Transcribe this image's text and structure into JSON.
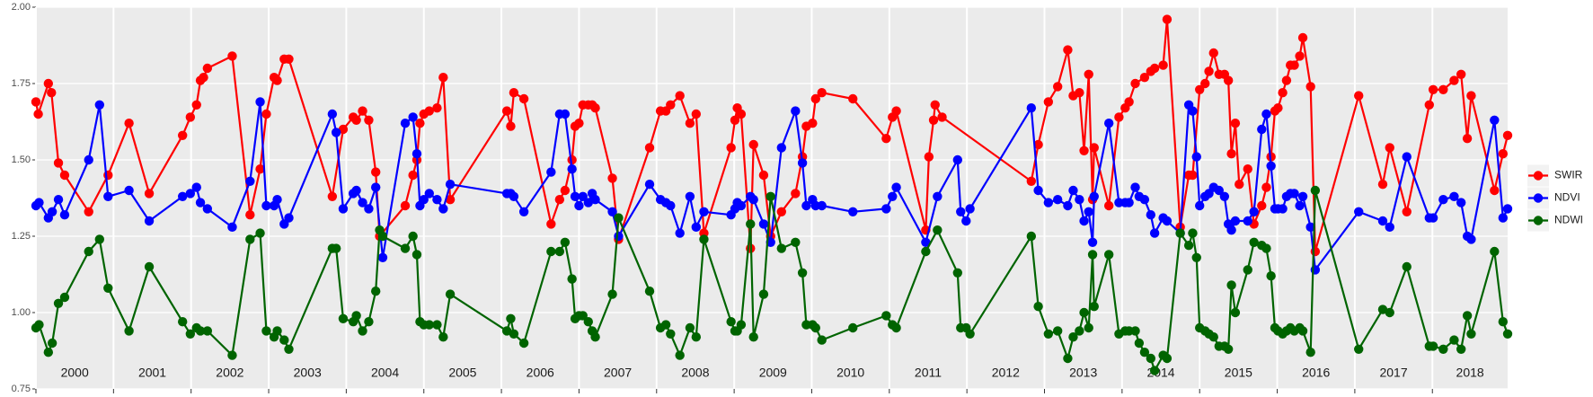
{
  "chart_data": {
    "type": "line",
    "xlim": [
      2000,
      2018.97
    ],
    "ylim": [
      0.75,
      2
    ],
    "yticks": [
      0.75,
      {
        "value": 1,
        "label": "1.00"
      },
      1.25,
      {
        "value": 1.5,
        "label": "1.50"
      },
      1.75,
      {
        "value": 2,
        "label": "2.00"
      }
    ],
    "xticks": [
      {
        "value": 2000,
        "label": "2000"
      },
      {
        "value": 2001,
        "label": "2001"
      },
      {
        "value": 2002,
        "label": "2002"
      },
      {
        "value": 2003,
        "label": "2003"
      },
      {
        "value": 2004,
        "label": "2004"
      },
      {
        "value": 2005,
        "label": "2005"
      },
      {
        "value": 2006,
        "label": "2006"
      },
      {
        "value": 2007,
        "label": "2007"
      },
      {
        "value": 2008,
        "label": "2008"
      },
      {
        "value": 2009,
        "label": "2009"
      },
      {
        "value": 2010,
        "label": "2010"
      },
      {
        "value": 2011,
        "label": "2011"
      },
      {
        "value": 2012,
        "label": "2012"
      },
      {
        "value": 2013,
        "label": "2013"
      },
      {
        "value": 2014,
        "label": "2014"
      },
      {
        "value": 2015,
        "label": "2015"
      },
      {
        "value": 2016,
        "label": "2016"
      },
      {
        "value": 2017,
        "label": "2017"
      },
      {
        "value": 2018,
        "label": "2018"
      }
    ],
    "grid": true,
    "legend": "right",
    "series": [
      {
        "name": "SWIR",
        "color": "#ff0000",
        "x": [
          2000.0,
          2000.03,
          2000.16,
          2000.2,
          2000.29,
          2000.37,
          2000.68,
          2000.93,
          2001.2,
          2001.46,
          2001.89,
          2001.99,
          2002.07,
          2002.12,
          2002.16,
          2002.21,
          2002.53,
          2002.76,
          2002.89,
          2002.97,
          2003.07,
          2003.11,
          2003.2,
          2003.26,
          2003.82,
          2003.96,
          2004.09,
          2004.13,
          2004.21,
          2004.29,
          2004.38,
          2004.43,
          2004.76,
          2004.86,
          2004.91,
          2004.95,
          2005.0,
          2005.07,
          2005.17,
          2005.25,
          2005.34,
          2006.07,
          2006.12,
          2006.16,
          2006.29,
          2006.64,
          2006.75,
          2006.82,
          2006.91,
          2006.95,
          2007.0,
          2007.05,
          2007.12,
          2007.17,
          2007.21,
          2007.43,
          2007.51,
          2007.91,
          2008.05,
          2008.12,
          2008.18,
          2008.3,
          2008.43,
          2008.51,
          2008.61,
          2008.96,
          2009.01,
          2009.04,
          2009.09,
          2009.21,
          2009.25,
          2009.38,
          2009.47,
          2009.61,
          2009.79,
          2009.88,
          2009.93,
          2010.01,
          2010.05,
          2010.13,
          2010.53,
          2010.96,
          2011.04,
          2011.09,
          2011.47,
          2011.51,
          2011.57,
          2011.59,
          2011.68,
          2012.83,
          2012.92,
          2013.05,
          2013.17,
          2013.3,
          2013.37,
          2013.45,
          2013.51,
          2013.57,
          2013.62,
          2013.64,
          2013.83,
          2013.96,
          2014.04,
          2014.09,
          2014.17,
          2014.29,
          2014.37,
          2014.42,
          2014.53,
          2014.58,
          2014.75,
          2014.86,
          2014.91,
          2015.0,
          2015.07,
          2015.12,
          2015.18,
          2015.25,
          2015.32,
          2015.37,
          2015.41,
          2015.46,
          2015.51,
          2015.62,
          2015.7,
          2015.8,
          2015.86,
          2015.92,
          2015.97,
          2016.01,
          2016.07,
          2016.12,
          2016.17,
          2016.22,
          2016.29,
          2016.33,
          2016.43,
          2016.49,
          2017.05,
          2017.36,
          2017.45,
          2017.67,
          2017.96,
          2018.01,
          2018.14,
          2018.28,
          2018.37,
          2018.45,
          2018.5,
          2018.8,
          2018.91,
          2018.97
        ],
        "values": [
          1.69,
          1.65,
          1.75,
          1.72,
          1.49,
          1.45,
          1.33,
          1.45,
          1.62,
          1.39,
          1.58,
          1.64,
          1.68,
          1.76,
          1.77,
          1.8,
          1.84,
          1.32,
          1.47,
          1.65,
          1.77,
          1.76,
          1.83,
          1.83,
          1.38,
          1.6,
          1.64,
          1.63,
          1.66,
          1.63,
          1.46,
          1.25,
          1.35,
          1.45,
          1.5,
          1.62,
          1.65,
          1.66,
          1.67,
          1.77,
          1.37,
          1.66,
          1.61,
          1.72,
          1.7,
          1.29,
          1.37,
          1.4,
          1.5,
          1.61,
          1.62,
          1.68,
          1.68,
          1.68,
          1.67,
          1.44,
          1.24,
          1.54,
          1.66,
          1.66,
          1.68,
          1.71,
          1.62,
          1.65,
          1.26,
          1.54,
          1.63,
          1.67,
          1.65,
          1.21,
          1.55,
          1.45,
          1.25,
          1.33,
          1.39,
          1.51,
          1.61,
          1.62,
          1.7,
          1.72,
          1.7,
          1.57,
          1.64,
          1.66,
          1.27,
          1.51,
          1.63,
          1.68,
          1.64,
          1.43,
          1.55,
          1.69,
          1.74,
          1.86,
          1.71,
          1.72,
          1.53,
          1.78,
          1.37,
          1.54,
          1.35,
          1.64,
          1.67,
          1.69,
          1.75,
          1.77,
          1.79,
          1.8,
          1.81,
          1.96,
          1.28,
          1.45,
          1.45,
          1.73,
          1.75,
          1.79,
          1.85,
          1.78,
          1.78,
          1.76,
          1.52,
          1.62,
          1.42,
          1.47,
          1.29,
          1.35,
          1.41,
          1.51,
          1.66,
          1.67,
          1.72,
          1.76,
          1.81,
          1.81,
          1.84,
          1.9,
          1.74,
          1.2,
          1.71,
          1.42,
          1.54,
          1.33,
          1.68,
          1.73,
          1.73,
          1.76,
          1.78,
          1.57,
          1.71,
          1.4,
          1.52,
          1.58
        ]
      },
      {
        "name": "NDVI",
        "color": "#0000ff",
        "x": [
          2000.0,
          2000.04,
          2000.16,
          2000.21,
          2000.29,
          2000.37,
          2000.68,
          2000.82,
          2000.93,
          2001.2,
          2001.46,
          2001.89,
          2001.99,
          2002.07,
          2002.12,
          2002.21,
          2002.53,
          2002.76,
          2002.89,
          2002.97,
          2003.07,
          2003.11,
          2003.2,
          2003.26,
          2003.82,
          2003.87,
          2003.96,
          2004.09,
          2004.13,
          2004.21,
          2004.29,
          2004.38,
          2004.47,
          2004.76,
          2004.86,
          2004.91,
          2004.95,
          2005.0,
          2005.07,
          2005.17,
          2005.25,
          2005.34,
          2006.07,
          2006.12,
          2006.16,
          2006.29,
          2006.64,
          2006.75,
          2006.82,
          2006.91,
          2006.95,
          2007.0,
          2007.05,
          2007.12,
          2007.17,
          2007.21,
          2007.43,
          2007.51,
          2007.91,
          2008.05,
          2008.12,
          2008.18,
          2008.3,
          2008.43,
          2008.51,
          2008.61,
          2008.96,
          2009.01,
          2009.04,
          2009.09,
          2009.21,
          2009.25,
          2009.38,
          2009.47,
          2009.61,
          2009.79,
          2009.88,
          2009.93,
          2010.01,
          2010.05,
          2010.13,
          2010.53,
          2010.96,
          2011.04,
          2011.09,
          2011.47,
          2011.62,
          2011.88,
          2011.92,
          2011.99,
          2012.04,
          2012.83,
          2012.92,
          2013.05,
          2013.17,
          2013.3,
          2013.37,
          2013.45,
          2013.51,
          2013.57,
          2013.62,
          2013.64,
          2013.83,
          2013.96,
          2014.04,
          2014.09,
          2014.17,
          2014.22,
          2014.29,
          2014.37,
          2014.42,
          2014.53,
          2014.58,
          2014.75,
          2014.86,
          2014.91,
          2014.96,
          2015.0,
          2015.07,
          2015.12,
          2015.18,
          2015.25,
          2015.32,
          2015.37,
          2015.41,
          2015.46,
          2015.62,
          2015.7,
          2015.8,
          2015.86,
          2015.92,
          2015.97,
          2016.01,
          2016.07,
          2016.12,
          2016.17,
          2016.22,
          2016.29,
          2016.33,
          2016.43,
          2016.49,
          2017.05,
          2017.36,
          2017.45,
          2017.67,
          2017.96,
          2018.01,
          2018.14,
          2018.28,
          2018.37,
          2018.45,
          2018.5,
          2018.8,
          2018.91,
          2018.97
        ],
        "values": [
          1.35,
          1.36,
          1.31,
          1.33,
          1.37,
          1.32,
          1.5,
          1.68,
          1.38,
          1.4,
          1.3,
          1.38,
          1.39,
          1.41,
          1.36,
          1.34,
          1.28,
          1.43,
          1.69,
          1.35,
          1.35,
          1.37,
          1.29,
          1.31,
          1.65,
          1.59,
          1.34,
          1.39,
          1.4,
          1.36,
          1.34,
          1.41,
          1.18,
          1.62,
          1.64,
          1.52,
          1.35,
          1.37,
          1.39,
          1.37,
          1.34,
          1.42,
          1.39,
          1.39,
          1.38,
          1.33,
          1.46,
          1.65,
          1.65,
          1.47,
          1.38,
          1.35,
          1.38,
          1.36,
          1.39,
          1.37,
          1.33,
          1.25,
          1.42,
          1.37,
          1.36,
          1.35,
          1.26,
          1.38,
          1.28,
          1.33,
          1.32,
          1.34,
          1.36,
          1.35,
          1.38,
          1.37,
          1.29,
          1.23,
          1.54,
          1.66,
          1.49,
          1.35,
          1.37,
          1.35,
          1.35,
          1.33,
          1.34,
          1.38,
          1.41,
          1.23,
          1.38,
          1.5,
          1.33,
          1.3,
          1.34,
          1.67,
          1.4,
          1.36,
          1.37,
          1.35,
          1.4,
          1.37,
          1.3,
          1.33,
          1.23,
          1.38,
          1.62,
          1.36,
          1.36,
          1.36,
          1.41,
          1.38,
          1.37,
          1.32,
          1.26,
          1.31,
          1.3,
          1.26,
          1.68,
          1.66,
          1.51,
          1.35,
          1.38,
          1.39,
          1.41,
          1.4,
          1.38,
          1.29,
          1.27,
          1.3,
          1.3,
          1.33,
          1.6,
          1.65,
          1.48,
          1.34,
          1.34,
          1.34,
          1.38,
          1.39,
          1.39,
          1.35,
          1.38,
          1.28,
          1.14,
          1.33,
          1.3,
          1.28,
          1.51,
          1.31,
          1.31,
          1.37,
          1.38,
          1.36,
          1.25,
          1.24,
          1.63,
          1.31,
          1.34
        ]
      },
      {
        "name": "NDWI",
        "color": "#006400",
        "x": [
          2000.0,
          2000.04,
          2000.16,
          2000.21,
          2000.29,
          2000.37,
          2000.68,
          2000.82,
          2000.93,
          2001.2,
          2001.46,
          2001.89,
          2001.99,
          2002.07,
          2002.12,
          2002.21,
          2002.53,
          2002.76,
          2002.89,
          2002.97,
          2003.07,
          2003.11,
          2003.2,
          2003.26,
          2003.82,
          2003.87,
          2003.96,
          2004.09,
          2004.13,
          2004.21,
          2004.29,
          2004.38,
          2004.43,
          2004.47,
          2004.76,
          2004.86,
          2004.91,
          2004.95,
          2005.0,
          2005.07,
          2005.17,
          2005.25,
          2005.34,
          2006.07,
          2006.12,
          2006.16,
          2006.29,
          2006.64,
          2006.75,
          2006.82,
          2006.91,
          2006.95,
          2007.0,
          2007.05,
          2007.12,
          2007.17,
          2007.21,
          2007.43,
          2007.51,
          2007.91,
          2008.05,
          2008.12,
          2008.18,
          2008.3,
          2008.43,
          2008.51,
          2008.61,
          2008.96,
          2009.01,
          2009.04,
          2009.09,
          2009.21,
          2009.25,
          2009.38,
          2009.47,
          2009.61,
          2009.79,
          2009.88,
          2009.93,
          2010.01,
          2010.05,
          2010.13,
          2010.53,
          2010.96,
          2011.04,
          2011.09,
          2011.47,
          2011.62,
          2011.88,
          2011.92,
          2011.99,
          2012.04,
          2012.83,
          2012.92,
          2013.05,
          2013.17,
          2013.3,
          2013.37,
          2013.45,
          2013.51,
          2013.57,
          2013.62,
          2013.64,
          2013.83,
          2013.96,
          2014.04,
          2014.09,
          2014.17,
          2014.22,
          2014.29,
          2014.37,
          2014.42,
          2014.53,
          2014.58,
          2014.75,
          2014.86,
          2014.91,
          2014.96,
          2015.0,
          2015.07,
          2015.12,
          2015.18,
          2015.25,
          2015.32,
          2015.37,
          2015.41,
          2015.46,
          2015.62,
          2015.7,
          2015.8,
          2015.86,
          2015.92,
          2015.97,
          2016.01,
          2016.07,
          2016.12,
          2016.17,
          2016.22,
          2016.29,
          2016.33,
          2016.43,
          2016.49,
          2017.05,
          2017.36,
          2017.45,
          2017.67,
          2017.96,
          2018.01,
          2018.14,
          2018.28,
          2018.37,
          2018.45,
          2018.5,
          2018.8,
          2018.91,
          2018.97
        ],
        "values": [
          0.95,
          0.96,
          0.87,
          0.9,
          1.03,
          1.05,
          1.2,
          1.24,
          1.08,
          0.94,
          1.15,
          0.97,
          0.93,
          0.95,
          0.94,
          0.94,
          0.86,
          1.24,
          1.26,
          0.94,
          0.92,
          0.94,
          0.91,
          0.88,
          1.21,
          1.21,
          0.98,
          0.97,
          0.99,
          0.94,
          0.97,
          1.07,
          1.27,
          1.25,
          1.21,
          1.25,
          1.19,
          0.97,
          0.96,
          0.96,
          0.96,
          0.92,
          1.06,
          0.94,
          0.98,
          0.93,
          0.9,
          1.2,
          1.2,
          1.23,
          1.11,
          0.98,
          0.99,
          0.99,
          0.97,
          0.94,
          0.92,
          1.06,
          1.31,
          1.07,
          0.95,
          0.96,
          0.93,
          0.86,
          0.95,
          0.92,
          1.24,
          0.97,
          0.94,
          0.94,
          0.96,
          1.29,
          0.92,
          1.06,
          1.38,
          1.21,
          1.23,
          1.13,
          0.96,
          0.96,
          0.95,
          0.91,
          0.95,
          0.99,
          0.96,
          0.95,
          1.2,
          1.27,
          1.13,
          0.95,
          0.95,
          0.93,
          1.25,
          1.02,
          0.93,
          0.94,
          0.85,
          0.92,
          0.94,
          1.0,
          0.95,
          1.19,
          1.02,
          1.19,
          0.93,
          0.94,
          0.94,
          0.94,
          0.9,
          0.87,
          0.85,
          0.81,
          0.86,
          0.85,
          1.26,
          1.22,
          1.26,
          1.18,
          0.95,
          0.94,
          0.93,
          0.92,
          0.89,
          0.89,
          0.88,
          1.09,
          1.0,
          1.14,
          1.23,
          1.22,
          1.21,
          1.12,
          0.95,
          0.94,
          0.93,
          0.94,
          0.95,
          0.94,
          0.95,
          0.94,
          0.87,
          1.4,
          0.88,
          1.01,
          1.0,
          1.15,
          0.89,
          0.89,
          0.88,
          0.91,
          0.88,
          0.99,
          0.93,
          1.2,
          0.97,
          0.93
        ]
      }
    ]
  }
}
